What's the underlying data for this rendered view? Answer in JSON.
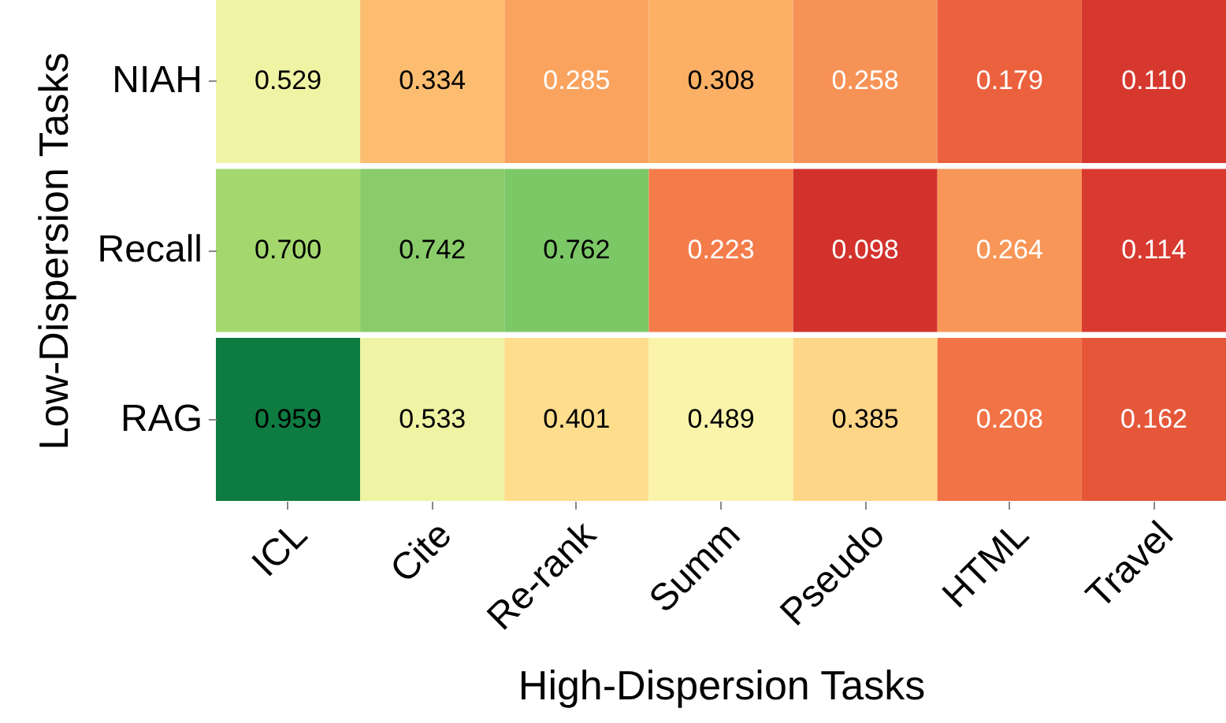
{
  "chart_data": {
    "type": "heatmap",
    "xlabel": "High-Dispersion Tasks",
    "ylabel": "Low-Dispersion Tasks",
    "categories": [
      "ICL",
      "Cite",
      "Re-rank",
      "Summ",
      "Pseudo",
      "HTML",
      "Travel"
    ],
    "y_categories": [
      "NIAH",
      "Recall",
      "RAG"
    ],
    "cells": [
      [
        0.529,
        0.334,
        0.285,
        0.308,
        0.258,
        0.179,
        0.11
      ],
      [
        0.7,
        0.742,
        0.762,
        0.223,
        0.098,
        0.264,
        0.114
      ],
      [
        0.959,
        0.533,
        0.401,
        0.489,
        0.385,
        0.208,
        0.162
      ]
    ],
    "cell_labels": [
      [
        "0.529",
        "0.334",
        "0.285",
        "0.308",
        "0.258",
        "0.179",
        "0.110"
      ],
      [
        "0.700",
        "0.742",
        "0.762",
        "0.223",
        "0.098",
        "0.264",
        "0.114"
      ],
      [
        "0.959",
        "0.533",
        "0.401",
        "0.489",
        "0.385",
        "0.208",
        "0.162"
      ]
    ],
    "data_labels": true
  }
}
